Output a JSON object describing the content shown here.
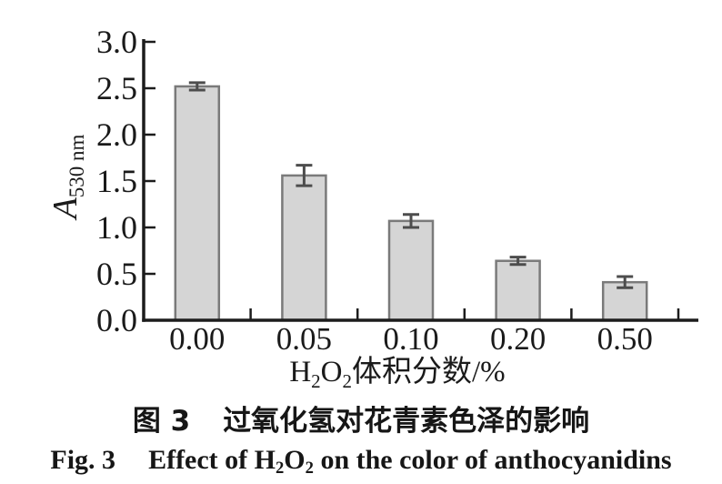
{
  "chart_data": {
    "type": "bar",
    "title": "",
    "categories": [
      "0.00",
      "0.05",
      "0.10",
      "0.20",
      "0.50"
    ],
    "values": [
      2.52,
      1.56,
      1.07,
      0.64,
      0.41
    ],
    "errors": [
      0.04,
      0.11,
      0.07,
      0.04,
      0.06
    ],
    "xlabel_segments": [
      {
        "t": "H"
      },
      {
        "t": "2",
        "sub": true
      },
      {
        "t": "O"
      },
      {
        "t": "2",
        "sub": true
      },
      {
        "t": "体积分数/%"
      }
    ],
    "ylabel_segments": [
      {
        "t": "A",
        "italic": true
      },
      {
        "t": "530 nm",
        "sub": true
      }
    ],
    "ylim": [
      0,
      3.0
    ],
    "ytick_step": 0.5,
    "yticks": [
      "0.0",
      "0.5",
      "1.0",
      "1.5",
      "2.0",
      "2.5",
      "3.0"
    ],
    "grid": false,
    "legend": null,
    "colors": {
      "bar_fill": "#d5d5d5",
      "bar_edge": "#7a7a7a",
      "error_bar": "#4d4d4d",
      "axis": "#1c1c1c",
      "text": "#1a1a1a"
    }
  },
  "captions": {
    "zh_segments": [
      {
        "t": "图 3"
      },
      {
        "t": "过氧化氢对花青素色泽的影响",
        "gap": true
      }
    ],
    "en_segments": [
      {
        "t": "Fig. 3"
      },
      {
        "t": "Effect of H",
        "gap": true
      },
      {
        "t": "2",
        "sub": true
      },
      {
        "t": "O"
      },
      {
        "t": "2",
        "sub": true
      },
      {
        "t": " on the color of anthocyanidins"
      }
    ]
  }
}
